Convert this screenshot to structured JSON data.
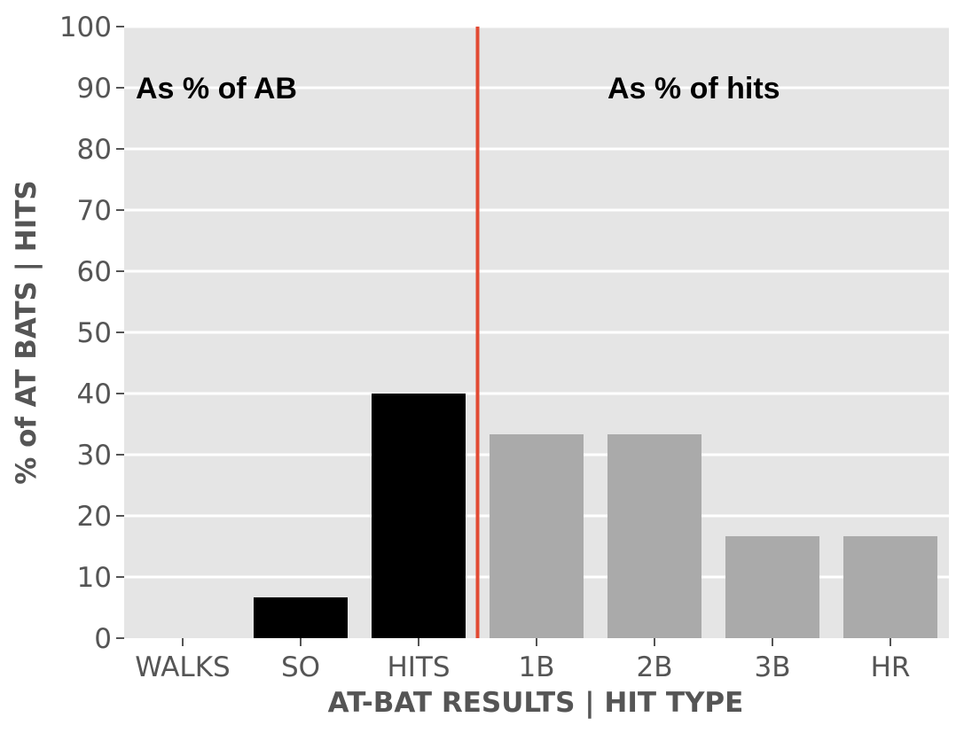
{
  "chart_data": {
    "type": "bar",
    "title": "",
    "xlabel": "AT-BAT RESULTS | HIT TYPE",
    "ylabel": "% of AT BATS | HITS",
    "ylim": [
      0,
      100
    ],
    "yticks": [
      0,
      10,
      20,
      30,
      40,
      50,
      60,
      70,
      80,
      90,
      100
    ],
    "categories": [
      "WALKS",
      "SO",
      "HITS",
      "1B",
      "2B",
      "3B",
      "HR"
    ],
    "values": [
      0,
      6.67,
      40,
      33.33,
      33.33,
      16.67,
      16.67
    ],
    "bar_colors": [
      "#000000",
      "#000000",
      "#000000",
      "#aaaaaa",
      "#aaaaaa",
      "#aaaaaa",
      "#aaaaaa"
    ],
    "grid": true,
    "background_color": "#e5e5e5",
    "divider": {
      "after_category": "HITS",
      "color": "#e24a33"
    },
    "annotations": [
      {
        "text": "As % of AB",
        "anchor_category": "WALKS",
        "y": 90
      },
      {
        "text": "As % of hits",
        "anchor_category": "2B",
        "y": 90
      }
    ]
  }
}
